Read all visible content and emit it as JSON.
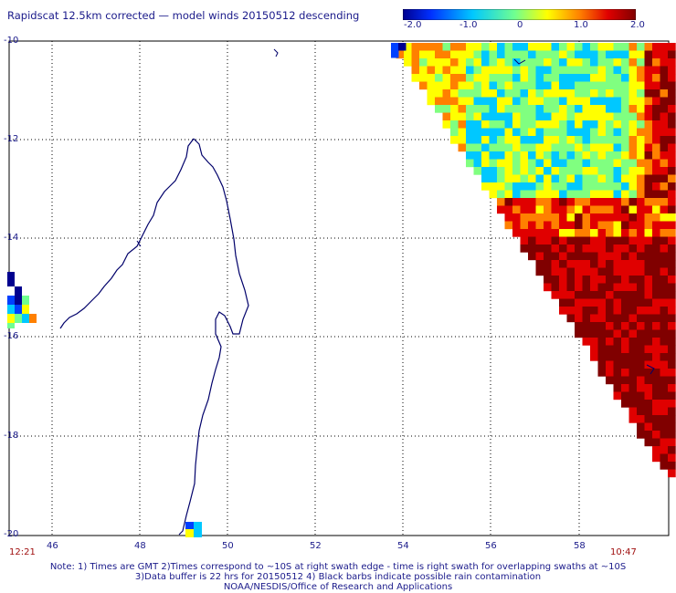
{
  "title": "Rapidscat 12.5km corrected — model winds 20150512 descending",
  "colorbar": {
    "ticks": [
      "-2.0",
      "-1.0",
      "0",
      "1.0",
      "2.0"
    ],
    "colors": [
      "#00008f",
      "#0040ff",
      "#00c8ff",
      "#80ff80",
      "#ffff00",
      "#ff8000",
      "#e00000",
      "#800000"
    ]
  },
  "map": {
    "lat_labels": [
      "-10",
      "-12",
      "-14",
      "-16",
      "-18",
      "-20"
    ],
    "lon_labels": [
      "46",
      "48",
      "50",
      "52",
      "54",
      "56",
      "58"
    ],
    "coast_color": "#00006a",
    "grid_color": "#000000"
  },
  "times": {
    "left": "12:21",
    "right": "10:47"
  },
  "notes": {
    "line1": "Note: 1) Times are GMT 2)Times correspond to ~10S at right swath edge - time is right swath for overlapping swaths at ~10S",
    "line2": "3)Data buffer is 22 hrs for 20150512 4) Black barbs indicate possible rain contamination",
    "line3": "NOAA/NESDIS/Office of Research and Applications"
  }
}
